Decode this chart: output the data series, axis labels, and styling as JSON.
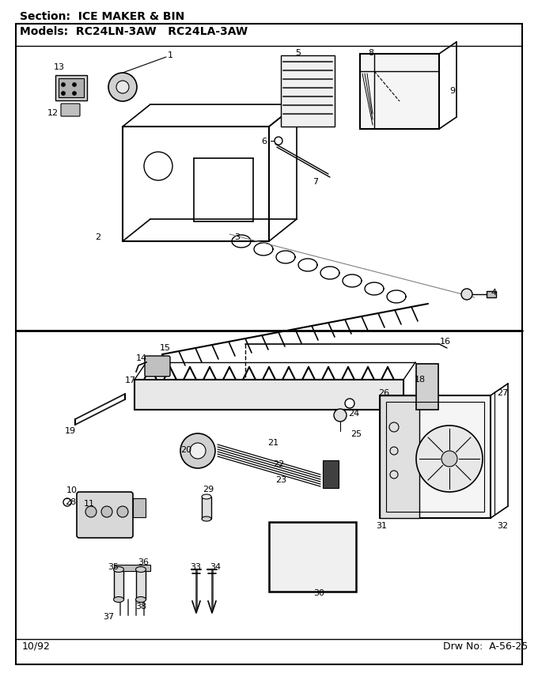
{
  "section_text": "Section:  ICE MAKER & BIN",
  "models_text": "Models:  RC24LN-3AW   RC24LA-3AW",
  "date_text": "10/92",
  "drw_text": "Drw No:  A-56-25",
  "bg_color": "#ffffff",
  "border_color": "#000000",
  "text_color": "#000000",
  "fig_width": 6.8,
  "fig_height": 8.8,
  "dpi": 100
}
